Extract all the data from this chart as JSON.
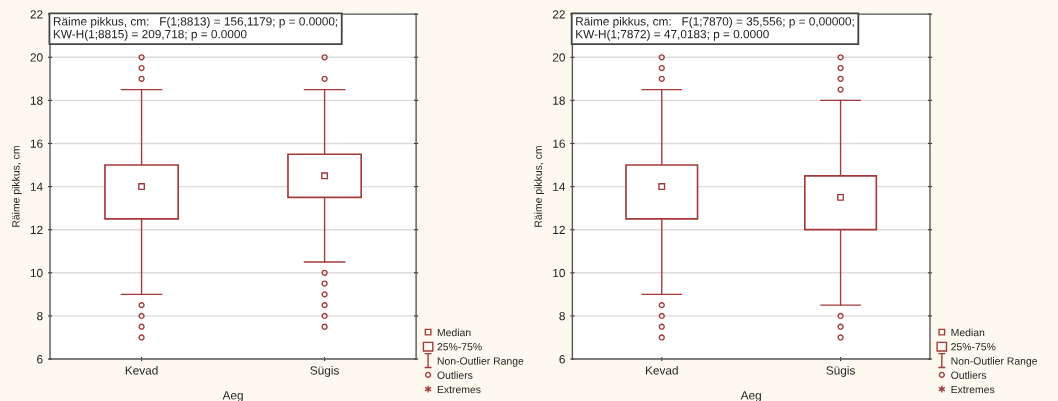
{
  "chart_data": [
    {
      "type": "box",
      "categories": [
        "Kevad",
        "Sügis"
      ],
      "xlabel": "Aeg",
      "ylabel": "Räime pikkus, cm",
      "ylim": [
        6,
        22
      ],
      "yticks": [
        6,
        8,
        10,
        12,
        14,
        16,
        18,
        20,
        22
      ],
      "grid": "y",
      "color": "#a33b3b",
      "annotations": [
        "Räime pikkus, cm:   F(1;8813) = 156,1179; p = 0.0000;\nKW-H(1;8815) = 209,718; p = 0.0000",
        "Median",
        "25%-75%",
        "Non-Outlier Range",
        "Outliers",
        "Extremes"
      ],
      "boxes": [
        {
          "low": 9,
          "q1": 12.5,
          "median": 14,
          "q3": 15,
          "high": 18.5,
          "outliers": [
            7,
            7.5,
            8,
            8.5,
            19,
            19.5,
            20
          ]
        },
        {
          "low": 10.5,
          "q1": 13.5,
          "median": 14.5,
          "q3": 15.5,
          "high": 18.5,
          "outliers": [
            7.5,
            8,
            8.5,
            9,
            9.5,
            10,
            19,
            20
          ]
        }
      ]
    },
    {
      "type": "box",
      "categories": [
        "Kevad",
        "Sügis"
      ],
      "xlabel": "Aeg",
      "ylabel": "Räime pikkus, cm",
      "ylim": [
        6,
        22
      ],
      "yticks": [
        6,
        8,
        10,
        12,
        14,
        16,
        18,
        20,
        22
      ],
      "grid": "y",
      "color": "#a33b3b",
      "annotations": [
        "Räime pikkus, cm:   F(1;7870) = 35,556; p = 0,00000;\nKW-H(1;7872) = 47,0183; p = 0.0000",
        "Median",
        "25%-75%",
        "Non-Outlier Range",
        "Outliers",
        "Extremes"
      ],
      "boxes": [
        {
          "low": 9,
          "q1": 12.5,
          "median": 14,
          "q3": 15,
          "high": 18.5,
          "outliers": [
            7,
            7.5,
            8,
            8.5,
            19,
            19.5,
            20
          ]
        },
        {
          "low": 8.5,
          "q1": 12,
          "median": 13.5,
          "q3": 14.5,
          "high": 18,
          "outliers": [
            7,
            7.5,
            8,
            18.5,
            19,
            19.5,
            20
          ]
        }
      ]
    }
  ]
}
